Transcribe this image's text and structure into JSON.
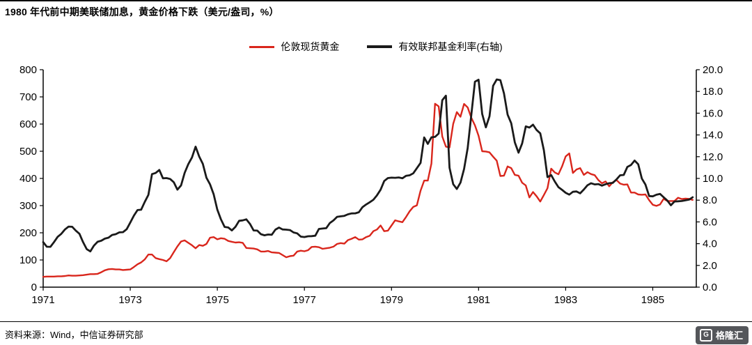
{
  "title": "1980 年代前中期美联储加息，黄金价格下跌（美元/盎司，%）",
  "source": "资料来源：Wind，中信证券研究部",
  "logo": {
    "mark": "G",
    "text": "格隆汇"
  },
  "legend": [
    {
      "label": "伦敦现货黄金",
      "color": "#d9261c",
      "weight": 3
    },
    {
      "label": "有效联邦基金利率(右轴)",
      "color": "#1a1a1a",
      "weight": 4
    }
  ],
  "chart_data": {
    "type": "line",
    "title": "1980 年代前中期美联储加息，黄金价格下跌（美元/盎司，%）",
    "x_unit": "month",
    "x_start_year": 1971,
    "x_end_year": 1986,
    "x_ticks": [
      1971,
      1973,
      1975,
      1977,
      1979,
      1981,
      1983,
      1985
    ],
    "grid": false,
    "legend_position": "top-center",
    "left_axis": {
      "min": 0,
      "max": 800,
      "tick_values": [
        0,
        100,
        200,
        300,
        400,
        500,
        600,
        700,
        800
      ]
    },
    "right_axis": {
      "min": 0,
      "max": 20,
      "tick_values": [
        0,
        2,
        4,
        6,
        8,
        10,
        12,
        14,
        16,
        18,
        20
      ]
    },
    "series": [
      {
        "name": "伦敦现货黄金",
        "data_name": "gold-price-line",
        "axis": "left",
        "color": "#d9261c",
        "width": 2.4,
        "values": [
          38,
          39,
          39,
          39,
          40,
          40,
          41,
          43,
          42,
          42,
          43,
          44,
          46,
          48,
          48,
          49,
          55,
          62,
          66,
          67,
          65,
          65,
          63,
          64,
          65,
          74,
          84,
          91,
          102,
          120,
          120,
          107,
          103,
          100,
          95,
          107,
          129,
          150,
          168,
          172,
          163,
          154,
          143,
          155,
          152,
          159,
          182,
          184,
          176,
          180,
          178,
          170,
          167,
          164,
          165,
          163,
          144,
          143,
          142,
          139,
          131,
          131,
          133,
          128,
          127,
          126,
          118,
          110,
          114,
          116,
          131,
          134,
          132,
          136,
          148,
          149,
          147,
          141,
          143,
          145,
          149,
          159,
          162,
          160,
          173,
          178,
          184,
          175,
          176,
          184,
          189,
          206,
          212,
          227,
          206,
          208,
          227,
          246,
          242,
          239,
          258,
          279,
          295,
          301,
          355,
          392,
          392,
          455,
          675,
          665,
          554,
          517,
          514,
          601,
          644,
          627,
          674,
          661,
          623,
          595,
          557,
          500,
          499,
          496,
          480,
          465,
          409,
          410,
          444,
          438,
          413,
          410,
          384,
          374,
          330,
          350,
          334,
          315,
          339,
          364,
          436,
          422,
          415,
          444,
          481,
          492,
          420,
          433,
          438,
          413,
          423,
          416,
          412,
          394,
          382,
          389,
          371,
          386,
          394,
          381,
          377,
          378,
          348,
          348,
          341,
          340,
          341,
          320,
          303,
          299,
          304,
          325,
          317,
          317,
          317,
          329,
          324,
          326,
          325,
          321
        ]
      },
      {
        "name": "有效联邦基金利率(右轴)",
        "data_name": "fed-funds-rate-line",
        "axis": "right",
        "color": "#1a1a1a",
        "width": 2.8,
        "values": [
          4.14,
          3.72,
          3.71,
          4.15,
          4.63,
          4.91,
          5.31,
          5.57,
          5.55,
          5.2,
          4.91,
          4.14,
          3.5,
          3.29,
          3.83,
          4.17,
          4.27,
          4.46,
          4.55,
          4.8,
          4.87,
          5.04,
          5.06,
          5.33,
          5.94,
          6.58,
          7.09,
          7.12,
          7.84,
          8.49,
          10.4,
          10.5,
          10.78,
          10.01,
          10.03,
          9.95,
          9.65,
          8.97,
          9.35,
          10.51,
          11.31,
          11.93,
          12.92,
          12.01,
          11.34,
          10.06,
          9.45,
          8.53,
          7.13,
          6.24,
          5.54,
          5.49,
          5.22,
          5.55,
          6.1,
          6.14,
          6.24,
          5.82,
          5.22,
          5.2,
          4.87,
          4.77,
          4.84,
          4.82,
          5.29,
          5.48,
          5.31,
          5.29,
          5.25,
          5.03,
          4.95,
          4.65,
          4.61,
          4.68,
          4.69,
          4.73,
          5.35,
          5.39,
          5.42,
          5.9,
          6.14,
          6.47,
          6.51,
          6.56,
          6.7,
          6.78,
          6.79,
          6.89,
          7.36,
          7.6,
          7.81,
          8.04,
          8.45,
          8.96,
          9.76,
          10.03,
          10.07,
          10.06,
          10.09,
          10.01,
          10.24,
          10.29,
          10.47,
          10.94,
          11.43,
          13.77,
          13.18,
          13.78,
          13.82,
          14.13,
          17.19,
          17.61,
          10.98,
          9.47,
          9.03,
          9.61,
          10.87,
          12.81,
          15.85,
          18.9,
          19.08,
          15.93,
          14.7,
          15.72,
          18.52,
          19.1,
          19.04,
          17.82,
          15.87,
          15.08,
          13.31,
          12.37,
          13.22,
          14.78,
          14.68,
          14.94,
          14.45,
          14.15,
          12.59,
          10.12,
          10.31,
          9.71,
          9.2,
          8.95,
          8.68,
          8.51,
          8.77,
          8.8,
          8.63,
          8.98,
          9.37,
          9.56,
          9.45,
          9.48,
          9.34,
          9.47,
          9.56,
          9.59,
          9.91,
          10.29,
          10.32,
          11.06,
          11.23,
          11.64,
          11.3,
          9.99,
          9.43,
          8.38,
          8.35,
          8.5,
          8.58,
          8.27,
          7.97,
          7.53,
          7.88,
          7.9,
          7.92,
          7.99,
          8.05,
          8.27
        ]
      }
    ]
  }
}
